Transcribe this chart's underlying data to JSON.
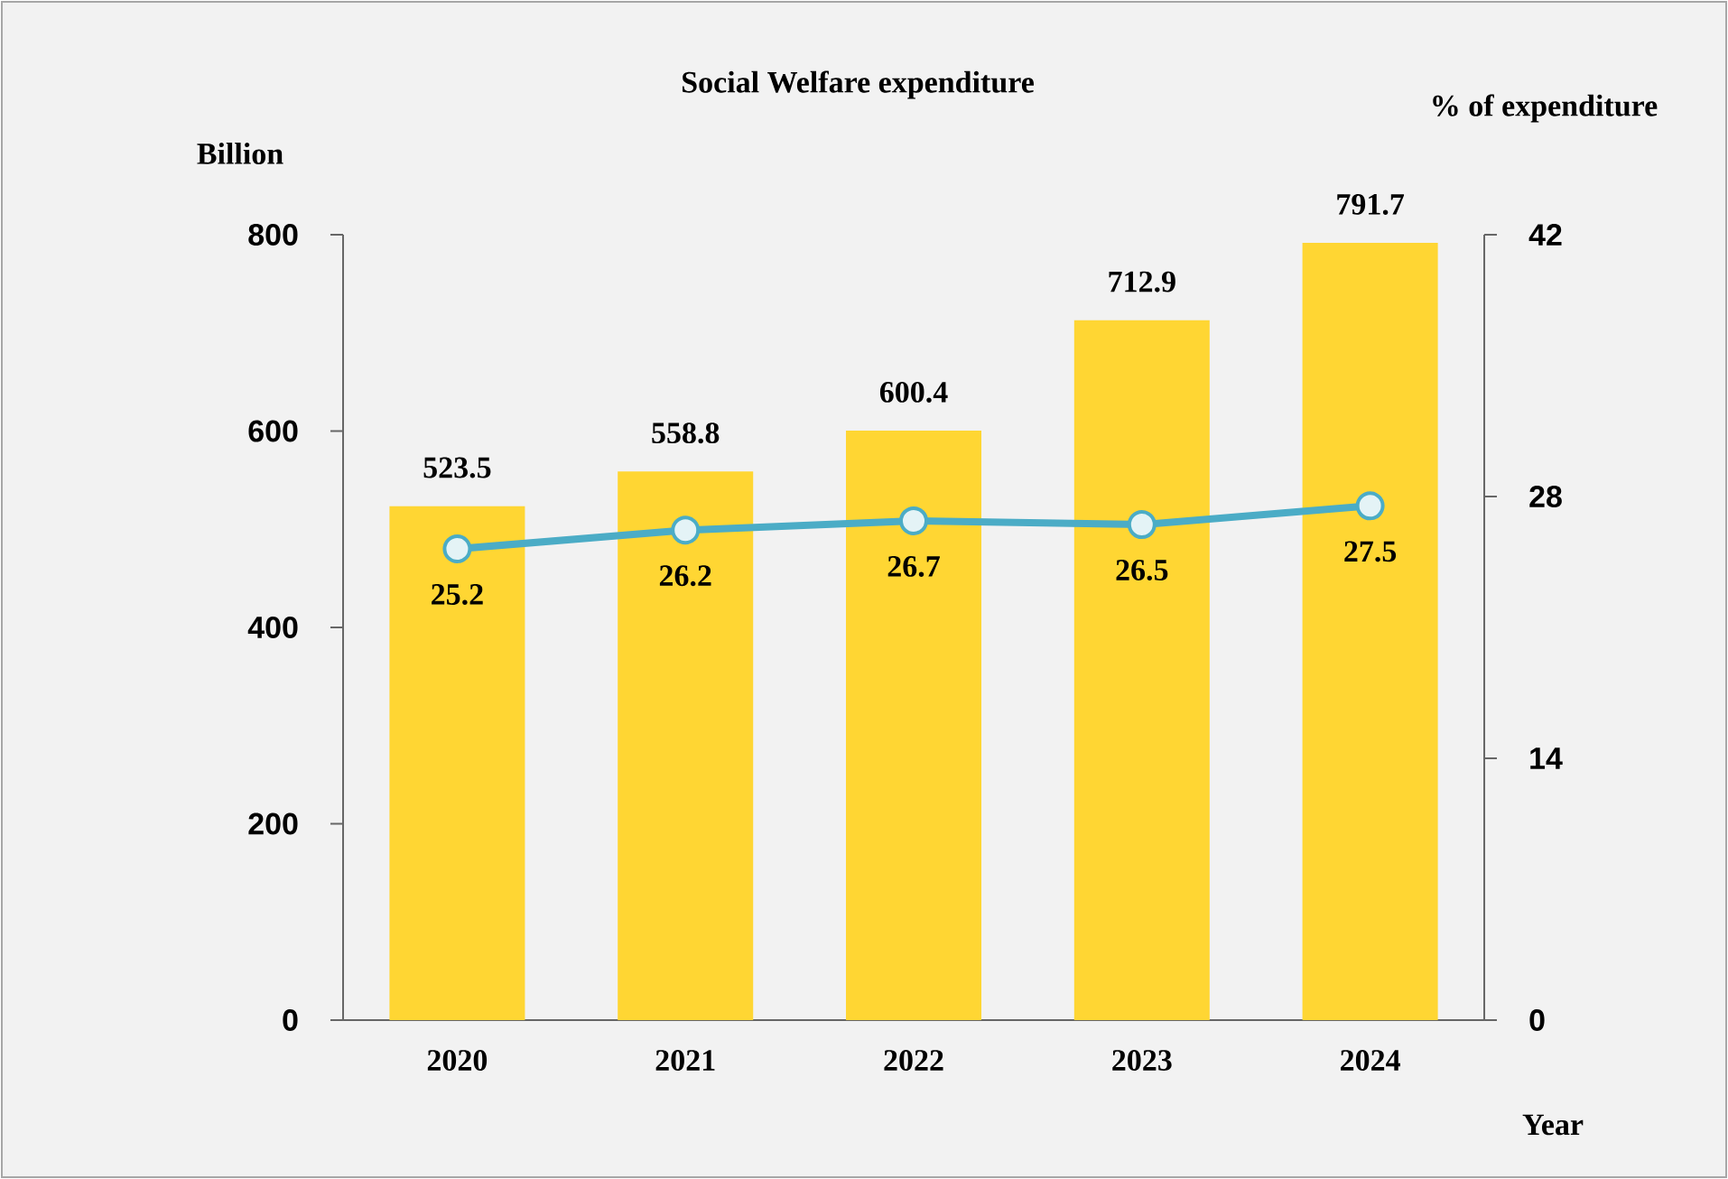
{
  "chart_data": {
    "type": "bar",
    "title": "Social Welfare expenditure",
    "ylabel": "Billion",
    "y2label": "% of expenditure",
    "xlabel": "Year",
    "categories": [
      "2020",
      "2021",
      "2022",
      "2023",
      "2024"
    ],
    "series": [
      {
        "color": "#ffd633",
        "values": [
          523.5,
          558.8,
          600.4,
          712.9,
          791.7
        ]
      },
      {
        "type": "line",
        "axis": "y2",
        "color": "#4bacc6",
        "marker": "circle",
        "values": [
          25.2,
          26.2,
          26.7,
          26.5,
          27.5
        ]
      }
    ],
    "ylim": [
      0,
      800
    ],
    "yticks": [
      0,
      200,
      400,
      600,
      800
    ],
    "y2lim": [
      0,
      42
    ],
    "y2ticks": [
      0,
      14,
      28,
      42
    ],
    "data_labels": true,
    "grid": false
  }
}
